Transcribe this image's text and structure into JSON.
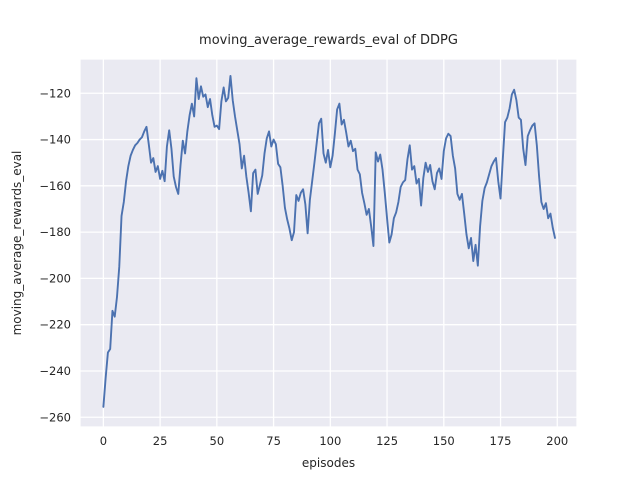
{
  "chart_data": {
    "type": "line",
    "title": "moving_average_rewards_eval of DDPG",
    "xlabel": "episodes",
    "ylabel": "moving_average_rewards_eval",
    "x_is_index": true,
    "x_range": [
      0,
      199
    ],
    "values": [
      -255.5,
      -243,
      -232,
      -230.5,
      -214,
      -216.5,
      -208,
      -195,
      -173,
      -167,
      -158,
      -151.5,
      -147,
      -144.5,
      -142.5,
      -141.5,
      -140,
      -139,
      -136.5,
      -134.5,
      -142,
      -150,
      -148,
      -154,
      -151.5,
      -157,
      -153.5,
      -158,
      -143,
      -136,
      -144,
      -156,
      -160.5,
      -163.5,
      -151,
      -140.5,
      -146,
      -136.5,
      -129.5,
      -124.5,
      -130,
      -113.5,
      -122.5,
      -117,
      -121.5,
      -120.5,
      -126,
      -122.5,
      -129.5,
      -134.5,
      -134,
      -135.5,
      -123.5,
      -117.5,
      -123.5,
      -122,
      -112.5,
      -123,
      -130,
      -136,
      -142,
      -152.5,
      -147,
      -156,
      -163,
      -171,
      -154.5,
      -153,
      -163.5,
      -159.5,
      -155.5,
      -146,
      -139.5,
      -136.5,
      -143,
      -140,
      -142,
      -150.5,
      -152,
      -160,
      -169.5,
      -174.5,
      -178.5,
      -183.5,
      -180,
      -164,
      -166.5,
      -163,
      -161.5,
      -168,
      -180.5,
      -166,
      -158,
      -150,
      -141.5,
      -133,
      -131,
      -146,
      -150,
      -144.5,
      -152,
      -147,
      -137.5,
      -127,
      -124.5,
      -133.5,
      -131.5,
      -137,
      -143,
      -140.5,
      -145,
      -144,
      -153,
      -155,
      -163,
      -167.5,
      -172.5,
      -170,
      -177.5,
      -186,
      -145.5,
      -149.5,
      -146.5,
      -153,
      -163,
      -174,
      -184.5,
      -181,
      -174,
      -171.5,
      -167,
      -160.5,
      -158.5,
      -157.5,
      -148.5,
      -142.5,
      -153,
      -151.5,
      -159,
      -157,
      -168.5,
      -156.5,
      -150,
      -154,
      -151,
      -158,
      -161.5,
      -154.5,
      -152.5,
      -157,
      -145,
      -139.5,
      -137.5,
      -138.5,
      -147,
      -152.5,
      -163.5,
      -166,
      -163.5,
      -172,
      -181,
      -187,
      -182.5,
      -192.5,
      -185.5,
      -194.5,
      -177.5,
      -166.5,
      -161,
      -158.5,
      -155,
      -151.5,
      -149.5,
      -148,
      -158,
      -165.5,
      -148.5,
      -132.5,
      -130.5,
      -126.5,
      -120.5,
      -118.5,
      -123,
      -130.5,
      -131.5,
      -144,
      -151,
      -138.5,
      -136,
      -134,
      -133,
      -142.5,
      -156,
      -167,
      -170,
      -167.5,
      -174,
      -172,
      -178,
      -182.5
    ],
    "xticks": [
      0,
      25,
      50,
      75,
      100,
      125,
      150,
      175,
      200
    ],
    "yticks": [
      -120,
      -140,
      -160,
      -180,
      -200,
      -220,
      -240,
      -260
    ],
    "xtick_labels": [
      "0",
      "25",
      "50",
      "75",
      "100",
      "125",
      "150",
      "175",
      "200"
    ],
    "ytick_labels": [
      "−120",
      "−140",
      "−160",
      "−180",
      "−200",
      "−220",
      "−240",
      "−260"
    ],
    "xlim": [
      -10.3,
      208.7
    ],
    "ylim": [
      -264.2,
      -105.2
    ],
    "grid": true,
    "legend": null,
    "line_color": "#4c72b0",
    "plot_bg_color": "#eaeaf2",
    "grid_color": "#ffffff",
    "axes_edge_color": "#ffffff",
    "text_color": "#262626",
    "figure_bg_color": "#ffffff"
  }
}
